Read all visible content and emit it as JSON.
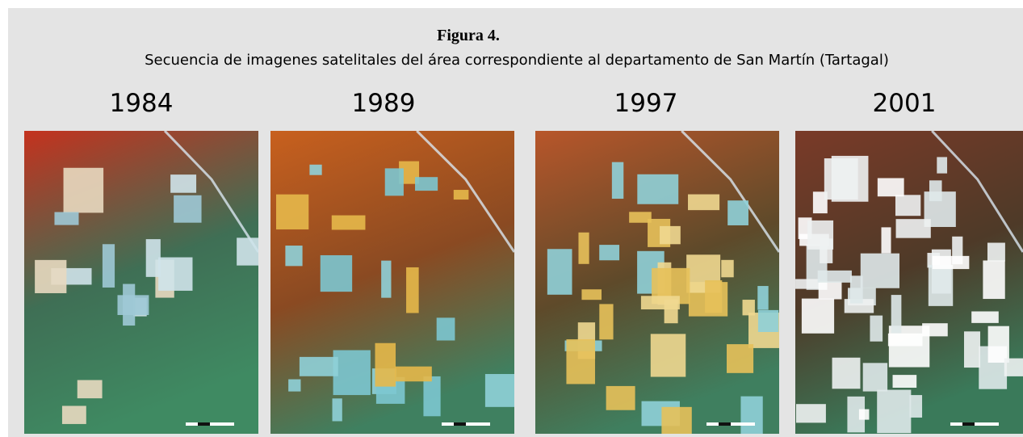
{
  "figure": {
    "title": "Figura 4.",
    "caption": "Secuencia de imagenes satelitales del área correspondiente al departamento de San Martín (Tartagal)",
    "panels": [
      {
        "year": "1984"
      },
      {
        "year": "1989"
      },
      {
        "year": "1997"
      },
      {
        "year": "2001"
      }
    ]
  }
}
